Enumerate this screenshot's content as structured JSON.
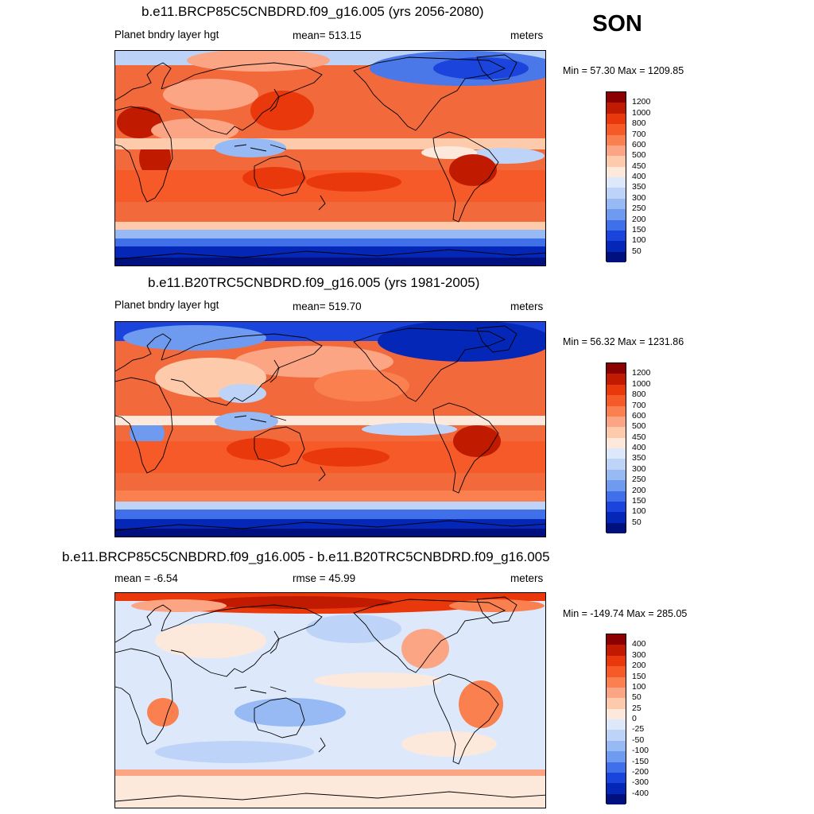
{
  "season": "SON",
  "panels": [
    {
      "title": "b.e11.BRCP85C5CNBDRD.f09_g16.005 (yrs 2056-2080)",
      "left_label": "Planet bndry layer hgt",
      "mid_label": "mean= 513.15",
      "units": "meters",
      "minmax": "Min =  57.30 Max = 1209.85"
    },
    {
      "title": "b.e11.B20TRC5CNBDRD.f09_g16.005 (yrs 1981-2005)",
      "left_label": "Planet bndry layer hgt",
      "mid_label": "mean= 519.70",
      "units": "meters",
      "minmax": "Min =  56.32 Max = 1231.86"
    },
    {
      "title": "b.e11.BRCP85C5CNBDRD.f09_g16.005 - b.e11.B20TRC5CNBDRD.f09_g16.005",
      "left_label": "mean =  -6.54",
      "mid_label": "rmse =  45.99",
      "units": "meters",
      "minmax": "Min = -149.74 Max = 285.05"
    }
  ],
  "colorbars": {
    "abs": {
      "labels": [
        "1200",
        "1000",
        "800",
        "700",
        "600",
        "500",
        "450",
        "400",
        "350",
        "300",
        "250",
        "200",
        "150",
        "100",
        "50"
      ],
      "colors": [
        "#8b0000",
        "#c01a00",
        "#e8380c",
        "#f65a28",
        "#fa8050",
        "#fca584",
        "#fdcbac",
        "#fde9dc",
        "#dde9fb",
        "#bdd4f8",
        "#97baf5",
        "#6e9bf0",
        "#3f70ea",
        "#1b44dc",
        "#0527b8",
        "#00107e"
      ]
    },
    "diff": {
      "labels": [
        "400",
        "300",
        "200",
        "150",
        "100",
        "50",
        "25",
        "0",
        "-25",
        "-50",
        "-100",
        "-150",
        "-200",
        "-300",
        "-400"
      ],
      "colors": [
        "#8b0000",
        "#c01a00",
        "#e8380c",
        "#f65a28",
        "#fa8050",
        "#fca584",
        "#fdcbac",
        "#fde9dc",
        "#dde9fb",
        "#bdd4f8",
        "#97baf5",
        "#6e9bf0",
        "#3f70ea",
        "#1b44dc",
        "#0527b8",
        "#00107e"
      ]
    }
  }
}
